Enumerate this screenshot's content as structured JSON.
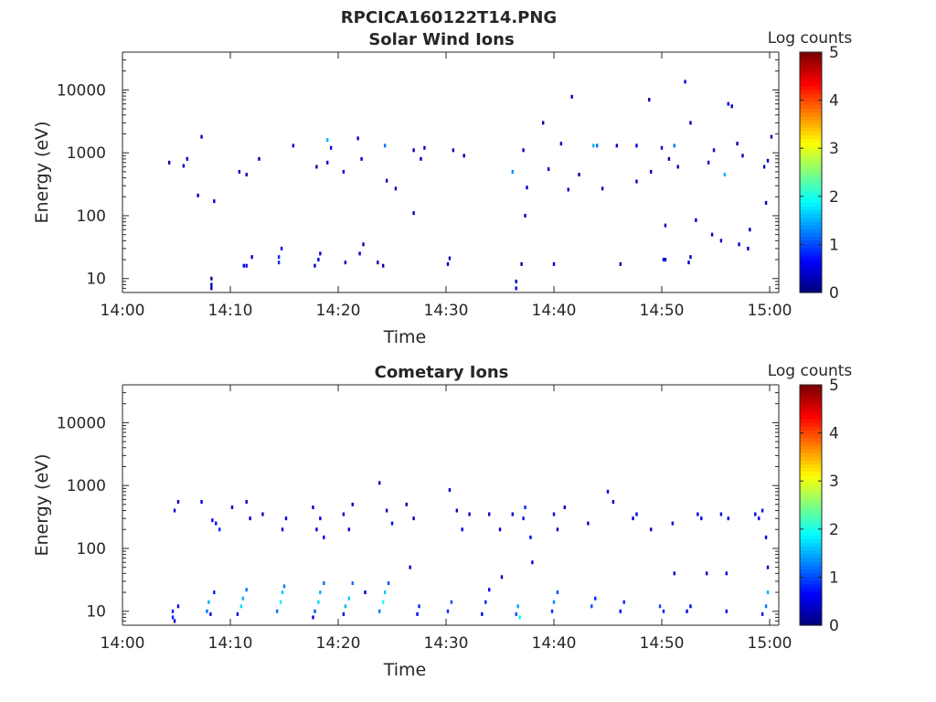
{
  "figure": {
    "main_title": "RPCICA160122T14.PNG"
  },
  "colorbar": {
    "label": "Log counts",
    "ticks": [
      "0",
      "1",
      "2",
      "3",
      "4",
      "5"
    ],
    "range": [
      0,
      5
    ],
    "colormap": "jet"
  },
  "chart_data": [
    {
      "type": "heatmap",
      "title": "Solar Wind Ions",
      "xlabel": "Time",
      "ylabel": "Energy (eV)",
      "x_range": [
        "14:00",
        "15:00"
      ],
      "xticks": [
        "14:00",
        "14:10",
        "14:20",
        "14:30",
        "14:40",
        "14:50",
        "15:00"
      ],
      "y_scale": "log",
      "ylim": [
        6,
        40000
      ],
      "yticks": [
        {
          "value": 10,
          "label": "10"
        },
        {
          "value": 100,
          "label": "100"
        },
        {
          "value": 1000,
          "label": "1000"
        },
        {
          "value": 10000,
          "label": "10000"
        }
      ],
      "grid": false,
      "points": [
        [
          "14:08:15",
          8,
          0.3
        ],
        [
          "14:08:15",
          10,
          0.3
        ],
        [
          "14:08:15",
          7,
          0.3
        ],
        [
          "14:11:15",
          16,
          0.6
        ],
        [
          "14:11:30",
          16,
          0.6
        ],
        [
          "14:12:00",
          22,
          0.4
        ],
        [
          "14:14:30",
          18,
          0.8
        ],
        [
          "14:14:30",
          22,
          0.8
        ],
        [
          "14:14:45",
          30,
          0.5
        ],
        [
          "14:17:50",
          16,
          0.5
        ],
        [
          "14:18:10",
          20,
          0.5
        ],
        [
          "14:18:20",
          25,
          0.4
        ],
        [
          "14:20:40",
          18,
          0.3
        ],
        [
          "14:22:00",
          25,
          0.3
        ],
        [
          "14:22:20",
          35,
          0.3
        ],
        [
          "14:23:40",
          18,
          0.3
        ],
        [
          "14:24:10",
          16,
          0.3
        ],
        [
          "14:30:10",
          17,
          0.3
        ],
        [
          "14:30:20",
          21,
          0.3
        ],
        [
          "14:36:30",
          7,
          0.4
        ],
        [
          "14:36:30",
          9,
          0.4
        ],
        [
          "14:37:00",
          17,
          0.3
        ],
        [
          "14:40:00",
          17,
          0.4
        ],
        [
          "14:46:10",
          17,
          0.3
        ],
        [
          "14:50:10",
          20,
          0.4
        ],
        [
          "14:50:20",
          20,
          0.4
        ],
        [
          "14:52:30",
          18,
          0.3
        ],
        [
          "14:52:40",
          22,
          0.3
        ],
        [
          "14:04:20",
          700,
          0.3
        ],
        [
          "14:05:40",
          620,
          0.4
        ],
        [
          "14:06:00",
          800,
          0.3
        ],
        [
          "14:07:20",
          1800,
          0.3
        ],
        [
          "14:07:00",
          210,
          0.3
        ],
        [
          "14:08:30",
          170,
          0.4
        ],
        [
          "14:10:50",
          500,
          0.3
        ],
        [
          "14:11:30",
          450,
          0.3
        ],
        [
          "14:12:40",
          800,
          0.3
        ],
        [
          "14:15:50",
          1300,
          0.5
        ],
        [
          "14:18:00",
          600,
          0.3
        ],
        [
          "14:19:00",
          700,
          0.4
        ],
        [
          "14:19:00",
          1600,
          1.5
        ],
        [
          "14:19:20",
          1200,
          0.5
        ],
        [
          "14:20:30",
          500,
          0.5
        ],
        [
          "14:21:50",
          1700,
          0.4
        ],
        [
          "14:22:10",
          800,
          0.4
        ],
        [
          "14:24:20",
          1300,
          1.2
        ],
        [
          "14:24:30",
          360,
          0.3
        ],
        [
          "14:25:20",
          270,
          0.3
        ],
        [
          "14:27:00",
          1100,
          0.3
        ],
        [
          "14:27:40",
          800,
          0.3
        ],
        [
          "14:27:00",
          110,
          0.3
        ],
        [
          "14:28:00",
          1200,
          0.3
        ],
        [
          "14:30:40",
          1100,
          0.3
        ],
        [
          "14:31:40",
          900,
          0.3
        ],
        [
          "14:36:10",
          500,
          1.3
        ],
        [
          "14:37:10",
          1100,
          0.4
        ],
        [
          "14:37:30",
          280,
          0.4
        ],
        [
          "14:37:20",
          100,
          0.3
        ],
        [
          "14:39:00",
          3000,
          0.3
        ],
        [
          "14:39:30",
          550,
          0.3
        ],
        [
          "14:40:40",
          1400,
          0.3
        ],
        [
          "14:41:20",
          260,
          0.3
        ],
        [
          "14:41:40",
          7800,
          0.3
        ],
        [
          "14:42:20",
          450,
          0.3
        ],
        [
          "14:43:40",
          1300,
          1.5
        ],
        [
          "14:44:00",
          1300,
          1.2
        ],
        [
          "14:44:30",
          270,
          0.3
        ],
        [
          "14:45:50",
          1300,
          0.4
        ],
        [
          "14:47:40",
          1300,
          0.5
        ],
        [
          "14:47:40",
          350,
          0.3
        ],
        [
          "14:48:50",
          7000,
          0.3
        ],
        [
          "14:49:00",
          500,
          0.3
        ],
        [
          "14:50:00",
          1200,
          0.3
        ],
        [
          "14:50:40",
          800,
          0.3
        ],
        [
          "14:50:20",
          70,
          0.3
        ],
        [
          "14:51:10",
          1300,
          1.2
        ],
        [
          "14:51:30",
          600,
          0.3
        ],
        [
          "14:52:10",
          13500,
          0.5
        ],
        [
          "14:52:40",
          3000,
          0.3
        ],
        [
          "14:53:10",
          85,
          0.3
        ],
        [
          "14:54:20",
          700,
          0.4
        ],
        [
          "14:54:50",
          1100,
          0.3
        ],
        [
          "14:55:50",
          450,
          1.5
        ],
        [
          "14:56:10",
          6000,
          0.4
        ],
        [
          "14:56:30",
          5500,
          0.3
        ],
        [
          "14:57:00",
          1400,
          0.3
        ],
        [
          "14:57:30",
          900,
          0.3
        ],
        [
          "14:54:40",
          50,
          0.3
        ],
        [
          "14:55:30",
          40,
          0.3
        ],
        [
          "14:57:10",
          35,
          0.3
        ],
        [
          "14:58:10",
          60,
          0.3
        ],
        [
          "14:58:00",
          30,
          0.3
        ],
        [
          "14:59:30",
          600,
          0.3
        ],
        [
          "14:59:50",
          750,
          0.3
        ],
        [
          "15:00:10",
          1800,
          0.3
        ],
        [
          "14:59:40",
          160,
          0.3
        ]
      ]
    },
    {
      "type": "heatmap",
      "title": "Cometary Ions",
      "xlabel": "Time",
      "ylabel": "Energy (eV)",
      "x_range": [
        "14:00",
        "15:00"
      ],
      "xticks": [
        "14:00",
        "14:10",
        "14:20",
        "14:30",
        "14:40",
        "14:50",
        "15:00"
      ],
      "y_scale": "log",
      "ylim": [
        6,
        40000
      ],
      "yticks": [
        {
          "value": 10,
          "label": "10"
        },
        {
          "value": 100,
          "label": "100"
        },
        {
          "value": 1000,
          "label": "1000"
        },
        {
          "value": 10000,
          "label": "10000"
        }
      ],
      "grid": false,
      "points": [
        [
          "14:04:40",
          8,
          0.8
        ],
        [
          "14:04:40",
          10,
          0.8
        ],
        [
          "14:04:50",
          7,
          0.4
        ],
        [
          "14:05:10",
          12,
          0.5
        ],
        [
          "14:07:50",
          10,
          1.2
        ],
        [
          "14:08:00",
          14,
          1.5
        ],
        [
          "14:08:10",
          9,
          0.6
        ],
        [
          "14:08:30",
          20,
          0.8
        ],
        [
          "14:10:40",
          9,
          0.6
        ],
        [
          "14:11:00",
          12,
          1.7
        ],
        [
          "14:11:10",
          16,
          1.5
        ],
        [
          "14:11:30",
          22,
          1.2
        ],
        [
          "14:14:20",
          10,
          1.2
        ],
        [
          "14:14:40",
          14,
          1.8
        ],
        [
          "14:14:50",
          20,
          1.6
        ],
        [
          "14:15:00",
          25,
          1.2
        ],
        [
          "14:17:40",
          8,
          0.5
        ],
        [
          "14:17:50",
          10,
          1.0
        ],
        [
          "14:18:10",
          14,
          1.7
        ],
        [
          "14:18:20",
          20,
          1.5
        ],
        [
          "14:18:40",
          28,
          1.2
        ],
        [
          "14:20:30",
          9,
          0.5
        ],
        [
          "14:20:40",
          12,
          1.5
        ],
        [
          "14:21:00",
          16,
          1.6
        ],
        [
          "14:21:20",
          28,
          1.2
        ],
        [
          "14:23:50",
          10,
          1.2
        ],
        [
          "14:24:10",
          14,
          1.9
        ],
        [
          "14:24:20",
          20,
          1.6
        ],
        [
          "14:24:40",
          28,
          1.0
        ],
        [
          "14:27:20",
          9,
          0.6
        ],
        [
          "14:27:30",
          12,
          0.8
        ],
        [
          "14:30:10",
          10,
          0.8
        ],
        [
          "14:30:30",
          14,
          1.0
        ],
        [
          "14:33:20",
          9,
          0.6
        ],
        [
          "14:33:40",
          14,
          0.8
        ],
        [
          "14:34:00",
          22,
          0.6
        ],
        [
          "14:36:30",
          9,
          1.0
        ],
        [
          "14:36:40",
          12,
          1.4
        ],
        [
          "14:36:50",
          8,
          1.8
        ],
        [
          "14:39:50",
          10,
          0.8
        ],
        [
          "14:40:00",
          14,
          1.3
        ],
        [
          "14:40:20",
          20,
          1.0
        ],
        [
          "14:43:30",
          12,
          1.0
        ],
        [
          "14:43:50",
          16,
          0.8
        ],
        [
          "14:46:10",
          10,
          0.6
        ],
        [
          "14:46:30",
          14,
          0.8
        ],
        [
          "14:49:50",
          12,
          1.0
        ],
        [
          "14:50:10",
          10,
          0.8
        ],
        [
          "14:52:20",
          10,
          0.5
        ],
        [
          "14:52:40",
          12,
          0.6
        ],
        [
          "14:56:00",
          10,
          0.6
        ],
        [
          "14:59:20",
          9,
          0.7
        ],
        [
          "14:59:40",
          12,
          1.2
        ],
        [
          "14:59:50",
          20,
          1.5
        ],
        [
          "14:04:50",
          400,
          0.4
        ],
        [
          "14:05:10",
          550,
          0.3
        ],
        [
          "14:07:20",
          550,
          0.5
        ],
        [
          "14:08:20",
          280,
          0.6
        ],
        [
          "14:08:40",
          250,
          0.6
        ],
        [
          "14:09:00",
          200,
          0.8
        ],
        [
          "14:10:10",
          450,
          0.3
        ],
        [
          "14:11:30",
          550,
          0.4
        ],
        [
          "14:11:50",
          300,
          0.4
        ],
        [
          "14:13:00",
          350,
          0.3
        ],
        [
          "14:14:50",
          200,
          0.5
        ],
        [
          "14:15:10",
          300,
          0.4
        ],
        [
          "14:17:40",
          450,
          0.4
        ],
        [
          "14:18:00",
          200,
          0.5
        ],
        [
          "14:18:20",
          300,
          0.5
        ],
        [
          "14:18:40",
          150,
          0.5
        ],
        [
          "14:20:30",
          350,
          0.4
        ],
        [
          "14:21:00",
          200,
          0.5
        ],
        [
          "14:21:20",
          500,
          0.3
        ],
        [
          "14:23:50",
          1100,
          0.4
        ],
        [
          "14:24:30",
          400,
          0.4
        ],
        [
          "14:25:00",
          250,
          0.5
        ],
        [
          "14:26:20",
          500,
          0.3
        ],
        [
          "14:27:00",
          300,
          0.3
        ],
        [
          "14:30:20",
          850,
          0.3
        ],
        [
          "14:31:00",
          400,
          0.4
        ],
        [
          "14:31:30",
          200,
          0.5
        ],
        [
          "14:32:10",
          350,
          0.3
        ],
        [
          "14:34:00",
          350,
          0.4
        ],
        [
          "14:35:00",
          200,
          0.5
        ],
        [
          "14:36:10",
          350,
          0.3
        ],
        [
          "14:37:10",
          300,
          0.7
        ],
        [
          "14:37:20",
          450,
          0.8
        ],
        [
          "14:37:50",
          150,
          0.6
        ],
        [
          "14:40:00",
          350,
          0.5
        ],
        [
          "14:40:20",
          200,
          0.4
        ],
        [
          "14:41:00",
          450,
          0.4
        ],
        [
          "14:43:10",
          250,
          0.3
        ],
        [
          "14:45:00",
          800,
          0.4
        ],
        [
          "14:45:30",
          550,
          0.3
        ],
        [
          "14:47:20",
          300,
          0.5
        ],
        [
          "14:47:40",
          350,
          0.5
        ],
        [
          "14:49:00",
          200,
          0.4
        ],
        [
          "14:51:00",
          250,
          0.5
        ],
        [
          "14:53:20",
          350,
          0.4
        ],
        [
          "14:53:40",
          300,
          0.5
        ],
        [
          "14:55:30",
          350,
          0.4
        ],
        [
          "14:56:10",
          300,
          0.5
        ],
        [
          "14:58:40",
          350,
          0.5
        ],
        [
          "14:59:00",
          300,
          0.6
        ],
        [
          "14:59:20",
          400,
          0.7
        ],
        [
          "14:59:40",
          150,
          0.5
        ],
        [
          "14:59:50",
          50,
          0.4
        ],
        [
          "14:56:00",
          40,
          0.5
        ],
        [
          "14:54:10",
          40,
          0.3
        ],
        [
          "14:51:10",
          40,
          0.3
        ],
        [
          "14:38:00",
          60,
          0.4
        ],
        [
          "14:35:10",
          35,
          0.3
        ],
        [
          "14:26:40",
          50,
          0.3
        ],
        [
          "14:22:30",
          20,
          0.4
        ]
      ]
    }
  ]
}
